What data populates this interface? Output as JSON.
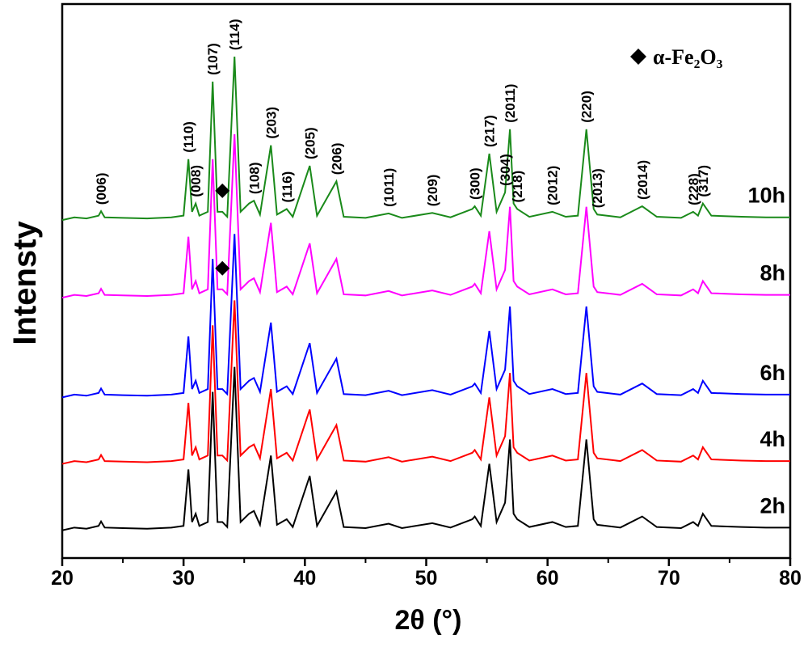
{
  "chart_data": {
    "type": "line",
    "x_label": "2θ (°)",
    "y_label": "Intensty",
    "legend_text": "α-Fe₂O₃",
    "xlim": [
      20,
      80
    ],
    "xticks": [
      20,
      30,
      40,
      50,
      60,
      70,
      80
    ],
    "ylim": [
      0,
      100
    ],
    "x": [
      20,
      21,
      22,
      23,
      23.2,
      23.5,
      25,
      27,
      29,
      30,
      30.4,
      30.7,
      31.0,
      31.3,
      32.0,
      32.4,
      32.8,
      33.2,
      33.6,
      34.2,
      34.7,
      35.4,
      35.8,
      36.3,
      37.2,
      37.7,
      38.5,
      39.0,
      40.4,
      41.0,
      42.6,
      43.2,
      45,
      46.9,
      48,
      50.5,
      52,
      53.8,
      54.0,
      54.5,
      55.2,
      55.8,
      56.5,
      56.9,
      57.2,
      57.5,
      58.5,
      60.4,
      61.5,
      62.5,
      63.2,
      63.8,
      64.1,
      66,
      67.8,
      69,
      71,
      72.0,
      72.4,
      72.8,
      73.5,
      76,
      78,
      80
    ],
    "series": [
      {
        "name": "2h",
        "color": "#000000",
        "values": [
          5,
          5.5,
          5.3,
          5.8,
          6.6,
          5.5,
          5.4,
          5.3,
          5.5,
          5.8,
          16,
          6.5,
          8,
          5.8,
          6.5,
          30,
          6.5,
          6.5,
          5.6,
          34.5,
          6.5,
          8,
          8.5,
          6,
          18.5,
          6,
          7,
          5.6,
          14.8,
          5.8,
          12,
          5.6,
          5.4,
          6.2,
          5.4,
          6.3,
          5.5,
          7,
          7.5,
          5.8,
          17,
          6.5,
          10,
          21.4,
          8,
          7,
          5.6,
          6.5,
          5.6,
          5.8,
          21.4,
          7,
          6,
          5.5,
          7.5,
          5.6,
          5.4,
          6.5,
          5.8,
          8,
          5.8,
          5.6,
          5.5,
          5.5
        ]
      },
      {
        "name": "4h",
        "color": "#ff0000",
        "values": [
          17,
          17.5,
          17.3,
          17.8,
          18.6,
          17.5,
          17.4,
          17.3,
          17.5,
          17.8,
          28,
          18.5,
          20,
          17.8,
          18.5,
          42,
          18.5,
          18.5,
          17.6,
          46.5,
          18.5,
          20,
          20.5,
          18,
          30.5,
          18,
          19,
          17.6,
          26.8,
          17.8,
          24,
          17.6,
          17.4,
          18.2,
          17.4,
          18.3,
          17.5,
          19,
          19.5,
          17.8,
          29,
          18.5,
          22,
          33.4,
          20,
          19,
          17.6,
          18.5,
          17.6,
          17.8,
          33.4,
          19,
          18,
          17.5,
          19.5,
          17.6,
          17.4,
          18.5,
          17.8,
          20,
          17.8,
          17.6,
          17.5,
          17.5
        ]
      },
      {
        "name": "6h",
        "color": "#0000ff",
        "values": [
          29,
          29.5,
          29.3,
          29.8,
          30.6,
          29.5,
          29.4,
          29.3,
          29.5,
          29.8,
          40,
          30.5,
          32,
          29.8,
          30.5,
          54,
          30.5,
          30.5,
          29.6,
          58.5,
          30.5,
          32,
          32.5,
          30,
          42.5,
          30,
          31,
          29.6,
          38.8,
          29.8,
          36,
          29.6,
          29.4,
          30.2,
          29.4,
          30.3,
          29.5,
          31,
          31.5,
          29.8,
          41,
          30.5,
          34,
          45.4,
          32,
          31,
          29.6,
          30.5,
          29.6,
          29.8,
          45.4,
          31,
          30,
          29.5,
          31.5,
          29.6,
          29.4,
          30.5,
          29.8,
          32,
          29.8,
          29.6,
          29.5,
          29.5
        ]
      },
      {
        "name": "8h",
        "color": "#ff00ff",
        "markers": [
          33.2
        ],
        "values": [
          47,
          47.5,
          47.3,
          47.8,
          48.6,
          47.5,
          47.4,
          47.3,
          47.5,
          47.8,
          58,
          48.5,
          50,
          47.8,
          48.5,
          72,
          48.5,
          48.5,
          47.6,
          76.5,
          48.5,
          50,
          50.5,
          48,
          60.5,
          48,
          49,
          47.6,
          56.8,
          47.8,
          54,
          47.6,
          47.4,
          48.2,
          47.4,
          48.3,
          47.5,
          49,
          49.5,
          47.8,
          59,
          48.5,
          52,
          63.4,
          50,
          49,
          47.6,
          48.5,
          47.6,
          47.8,
          63.4,
          49,
          48,
          47.5,
          49.5,
          47.6,
          47.4,
          48.5,
          47.8,
          50,
          47.8,
          47.6,
          47.5,
          47.5
        ]
      },
      {
        "name": "10h",
        "color": "#1a8a1a",
        "markers": [
          33.2
        ],
        "values": [
          61,
          61.5,
          61.3,
          61.8,
          62.6,
          61.5,
          61.4,
          61.3,
          61.5,
          61.8,
          72,
          62.5,
          64,
          61.8,
          62.5,
          86,
          62.5,
          62.5,
          61.6,
          90.5,
          62.5,
          64,
          64.5,
          62,
          74.5,
          62,
          63,
          61.6,
          70.8,
          61.8,
          68,
          61.6,
          61.4,
          62.2,
          61.4,
          62.3,
          61.5,
          63,
          63.5,
          61.8,
          73,
          62.5,
          66,
          77.4,
          64,
          63,
          61.6,
          62.5,
          61.6,
          61.8,
          77.4,
          63,
          62,
          61.5,
          63.5,
          61.6,
          61.4,
          62.5,
          61.8,
          64,
          61.8,
          61.6,
          61.5,
          61.5
        ]
      }
    ],
    "peak_labels": [
      {
        "text": "(006)",
        "x": 23.2
      },
      {
        "text": "(110)",
        "x": 30.4
      },
      {
        "text": "(008)",
        "x": 31.0
      },
      {
        "text": "(107)",
        "x": 32.4
      },
      {
        "text": "(114)",
        "x": 34.2
      },
      {
        "text": "(108)",
        "x": 35.8
      },
      {
        "text": "(116)",
        "x": 38.5
      },
      {
        "text": "(203)",
        "x": 37.2
      },
      {
        "text": "(205)",
        "x": 40.4
      },
      {
        "text": "(206)",
        "x": 42.6
      },
      {
        "text": "(1011)",
        "x": 46.9
      },
      {
        "text": "(209)",
        "x": 50.5
      },
      {
        "text": "(300)",
        "x": 54.0
      },
      {
        "text": "(217)",
        "x": 55.2
      },
      {
        "text": "(304)",
        "x": 56.5
      },
      {
        "text": "(2011)",
        "x": 56.9
      },
      {
        "text": "(218)",
        "x": 57.5
      },
      {
        "text": "(2012)",
        "x": 60.4
      },
      {
        "text": "(220)",
        "x": 63.2
      },
      {
        "text": "(2013)",
        "x": 64.1
      },
      {
        "text": "(2014)",
        "x": 67.8
      },
      {
        "text": "(228)",
        "x": 72.0
      },
      {
        "text": "(317)",
        "x": 72.8
      }
    ]
  }
}
